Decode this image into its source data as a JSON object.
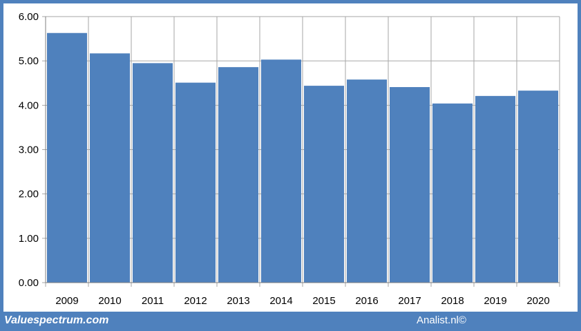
{
  "footer": {
    "site_label": "Valuespectrum.com",
    "credit_label": "Analist.nl©"
  },
  "colors": {
    "frame": "#4f81bd",
    "bar": "#4f81bd",
    "grid": "#a6a6a6"
  },
  "chart_data": {
    "type": "bar",
    "title": "",
    "xlabel": "",
    "ylabel": "",
    "categories": [
      "2009",
      "2010",
      "2011",
      "2012",
      "2013",
      "2014",
      "2015",
      "2016",
      "2017",
      "2018",
      "2019",
      "2020"
    ],
    "values": [
      5.63,
      5.17,
      4.95,
      4.51,
      4.86,
      5.03,
      4.44,
      4.58,
      4.41,
      4.04,
      4.21,
      4.33
    ],
    "ylim": [
      0,
      6
    ],
    "yticks": [
      "0.00",
      "1.00",
      "2.00",
      "3.00",
      "4.00",
      "5.00",
      "6.00"
    ],
    "grid": true,
    "legend": "none"
  }
}
